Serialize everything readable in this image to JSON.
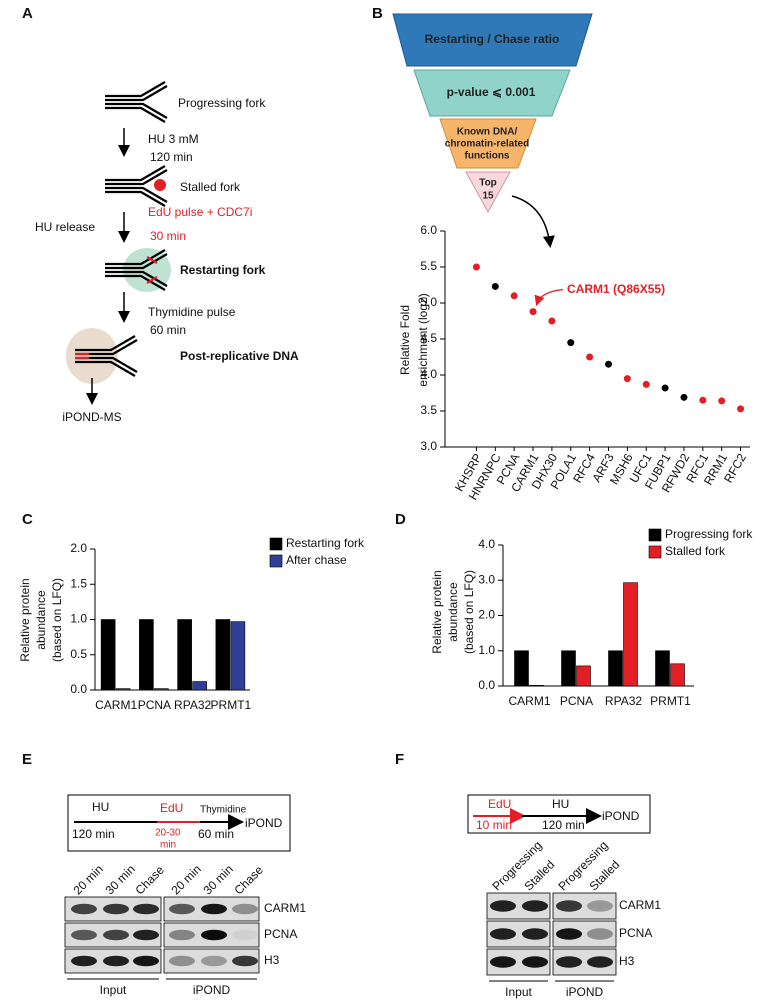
{
  "panel_labels": [
    "A",
    "B",
    "C",
    "D",
    "E",
    "F"
  ],
  "panel_a": {
    "progressing_fork": "Progressing fork",
    "hu": "HU 3 mM",
    "hu_time": "120 min",
    "stalled_fork": "Stalled fork",
    "hu_release": "HU release",
    "edu": "EdU pulse + CDC7i",
    "edu_time": "30 min",
    "restarting_fork": "Restarting fork",
    "thymidine": "Thymidine pulse",
    "thymidine_time": "60 min",
    "post_replicative": "Post-replicative DNA",
    "readout": "iPOND-MS"
  },
  "funnel": {
    "level1": "Restarting / Chase ratio",
    "level2": "p-value ⩽ 0.001",
    "level3": [
      "Known DNA/",
      "chromatin-related",
      "functions"
    ],
    "level4": [
      "Top",
      "15"
    ]
  },
  "chart_data": [
    {
      "type": "scatter",
      "categories": [
        "KHSRP",
        "HNRNPC",
        "PCNA",
        "CARM1",
        "DHX30",
        "POLA1",
        "RFC4",
        "ARF3",
        "MSH6",
        "UFC1",
        "FUBP1",
        "RFWD2",
        "RFC1",
        "RRM1",
        "RFC2"
      ],
      "values": [
        5.5,
        5.23,
        5.1,
        4.88,
        4.75,
        4.45,
        4.25,
        4.15,
        3.95,
        3.87,
        3.82,
        3.69,
        3.65,
        3.64,
        3.53
      ],
      "colors": [
        "#e31e24",
        "#000000",
        "#e31e24",
        "#e31e24",
        "#e31e24",
        "#000000",
        "#e31e24",
        "#000000",
        "#e31e24",
        "#e31e24",
        "#000000",
        "#000000",
        "#e31e24",
        "#e31e24",
        "#e31e24"
      ],
      "ylim": [
        3,
        6
      ],
      "yticks": [
        {
          "value": 3,
          "label": "3.0"
        },
        {
          "value": 3.5,
          "label": "3.5"
        },
        {
          "value": 4,
          "label": "4.0"
        },
        {
          "value": 4.5,
          "label": "4.5"
        },
        {
          "value": 5,
          "label": "5.0"
        },
        {
          "value": 5.5,
          "label": "5.5"
        },
        {
          "value": 6,
          "label": "6.0"
        }
      ],
      "ylabel": [
        "Relative Fold",
        "enrichment (log2)"
      ],
      "annotation": "CARM1 (Q86X55)"
    },
    {
      "type": "bar",
      "categories": [
        "CARM1",
        "PCNA",
        "RPA32",
        "PRMT1"
      ],
      "series": [
        {
          "name": "Restarting fork",
          "color": "#000000",
          "values": [
            1,
            1,
            1,
            1
          ]
        },
        {
          "name": "After chase",
          "color": "#2e3f98",
          "values": [
            0.02,
            0.02,
            0.12,
            0.97
          ]
        }
      ],
      "ylim": [
        0,
        2
      ],
      "yticks": [
        {
          "value": 0,
          "label": "0.0"
        },
        {
          "value": 0.5,
          "label": "0.5"
        },
        {
          "value": 1,
          "label": "1.0"
        },
        {
          "value": 1.5,
          "label": "1.5"
        },
        {
          "value": 2,
          "label": "2.0"
        }
      ],
      "ylabel": [
        "Relative protein",
        "abundance",
        "(based on LFQ)"
      ]
    },
    {
      "type": "bar",
      "categories": [
        "CARM1",
        "PCNA",
        "RPA32",
        "PRMT1"
      ],
      "series": [
        {
          "name": "Progressing fork",
          "color": "#000000",
          "values": [
            1,
            1,
            1,
            1
          ]
        },
        {
          "name": "Stalled fork",
          "color": "#e31e24",
          "values": [
            0.02,
            0.57,
            2.93,
            0.63
          ]
        }
      ],
      "ylim": [
        0,
        4
      ],
      "yticks": [
        {
          "value": 0,
          "label": "0.0"
        },
        {
          "value": 1,
          "label": "1.0"
        },
        {
          "value": 2,
          "label": "2.0"
        },
        {
          "value": 3,
          "label": "3.0"
        },
        {
          "value": 4,
          "label": "4.0"
        }
      ],
      "ylabel": [
        "Relative protein",
        "abundance",
        "(based on LFQ)"
      ]
    }
  ],
  "panel_e": {
    "timeline": {
      "hu": "HU",
      "hu_time": "120 min",
      "edu": "EdU",
      "edu_time": [
        "20-30",
        "min"
      ],
      "thymidine": "Thymidine",
      "thymidine_time": "60 min",
      "readout": "iPOND"
    },
    "columns": [
      "20 min",
      "30 min",
      "Chase",
      "20 min",
      "30 min",
      "Chase"
    ],
    "rows": [
      "CARM1",
      "PCNA",
      "H3"
    ],
    "groups": [
      "Input",
      "iPOND"
    ]
  },
  "panel_f": {
    "timeline": {
      "edu": "EdU",
      "edu_time": "10 min",
      "hu": "HU",
      "hu_time": "120 min",
      "readout": "iPOND"
    },
    "columns": [
      "Progressing",
      "Stalled",
      "Progressing",
      "Stalled"
    ],
    "rows": [
      "CARM1",
      "PCNA",
      "H3"
    ],
    "groups": [
      "Input",
      "iPOND"
    ]
  }
}
